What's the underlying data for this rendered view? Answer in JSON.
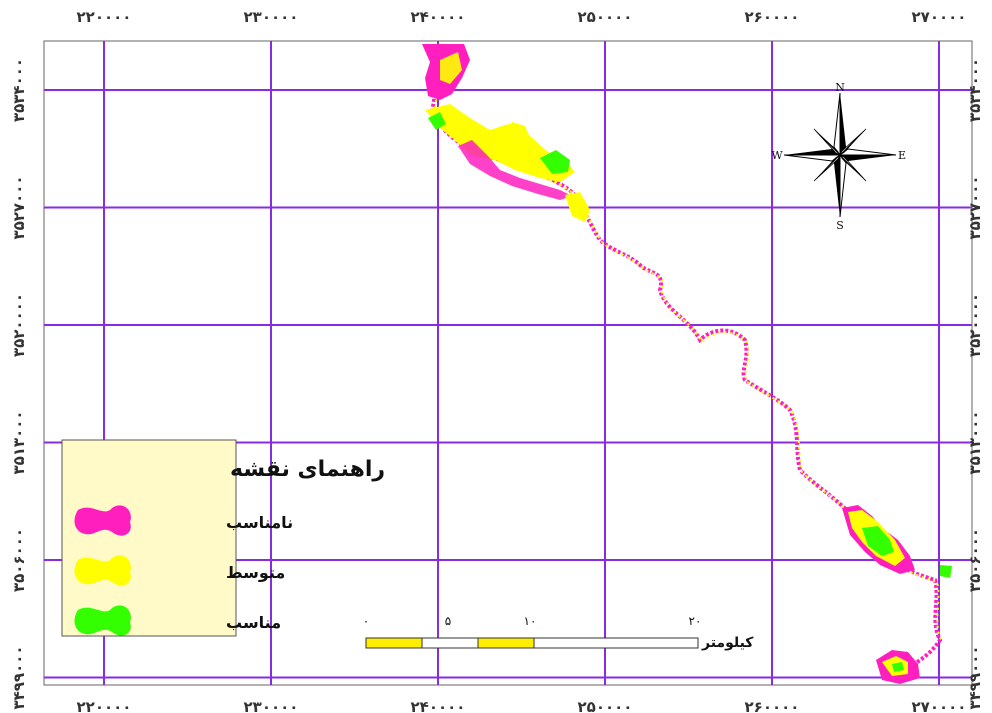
{
  "map": {
    "x_ticks": [
      {
        "value": 220000,
        "label": "۲۲۰۰۰۰"
      },
      {
        "value": 230000,
        "label": "۲۳۰۰۰۰"
      },
      {
        "value": 240000,
        "label": "۲۴۰۰۰۰"
      },
      {
        "value": 250000,
        "label": "۲۵۰۰۰۰"
      },
      {
        "value": 260000,
        "label": "۲۶۰۰۰۰"
      },
      {
        "value": 270000,
        "label": "۲۷۰۰۰۰"
      }
    ],
    "y_ticks": [
      {
        "value": 3534000,
        "label": "۳۵۳۴۰۰۰"
      },
      {
        "value": 3527000,
        "label": "۳۵۲۷۰۰۰"
      },
      {
        "value": 3520000,
        "label": "۳۵۲۰۰۰۰"
      },
      {
        "value": 3513000,
        "label": "۳۵۱۳۰۰۰"
      },
      {
        "value": 3506000,
        "label": "۳۵۰۶۰۰۰"
      },
      {
        "value": 3499000,
        "label": "۳۴۹۹۰۰۰"
      }
    ],
    "colors": {
      "grid": "#8a2be2",
      "unsuitable": "#ff1fbf",
      "moderate": "#ffff00",
      "suitable": "#33ff00",
      "legend_bg": "#fffac8"
    }
  },
  "legend": {
    "title": "راهنمای نقشه",
    "items": [
      {
        "label": "نامناسب",
        "color": "#ff1fbf"
      },
      {
        "label": "متوسط",
        "color": "#ffff00"
      },
      {
        "label": "مناسب",
        "color": "#33ff00"
      }
    ]
  },
  "scale_bar": {
    "labels": [
      "۰",
      "۵",
      "۱۰",
      "۲۰"
    ],
    "unit": "کیلومتر"
  },
  "compass": {
    "n": "N",
    "e": "E",
    "s": "S",
    "w": "W"
  }
}
